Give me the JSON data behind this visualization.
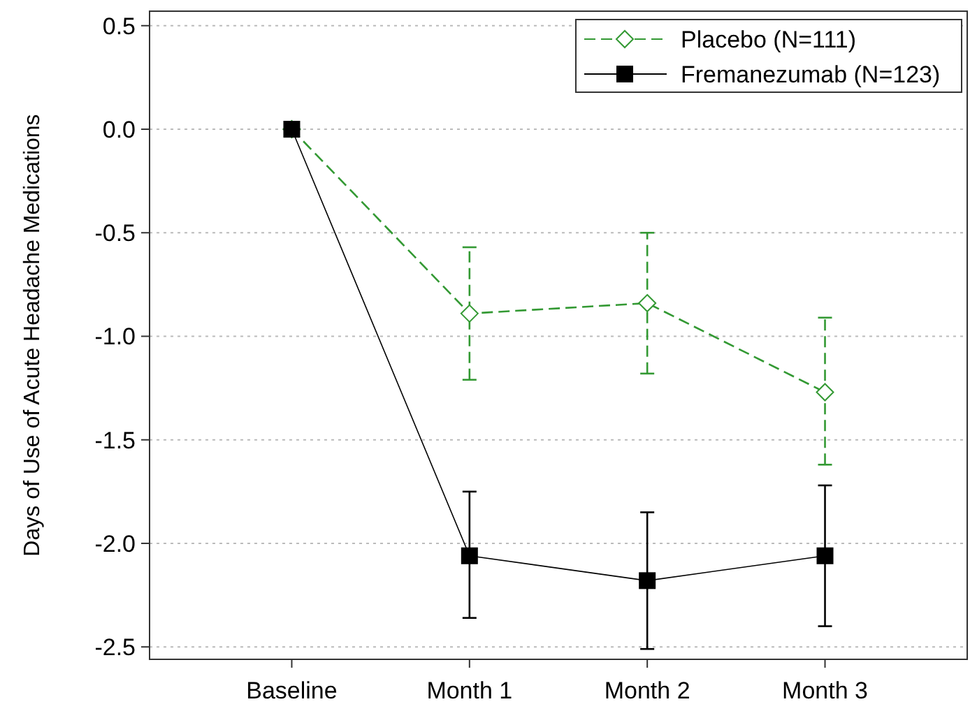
{
  "chart_data": {
    "type": "line",
    "ylabel": "Days of Use of Acute Headache Medications",
    "categories": [
      "Baseline",
      "Month 1",
      "Month 2",
      "Month 3"
    ],
    "series": [
      {
        "name": "Placebo (N=111)",
        "color": "#339933",
        "marker": "diamond",
        "line_style": "dashed",
        "values": [
          0,
          -0.89,
          -0.84,
          -1.27
        ],
        "errors": [
          null,
          [
            -1.21,
            -0.57
          ],
          [
            -1.18,
            -0.5
          ],
          [
            -1.62,
            -0.91
          ]
        ]
      },
      {
        "name": "Fremanezumab (N=123)",
        "color": "#000000",
        "marker": "square",
        "line_style": "solid",
        "values": [
          0,
          -2.06,
          -2.18,
          -2.06
        ],
        "errors": [
          null,
          [
            -2.36,
            -1.75
          ],
          [
            -2.51,
            -1.85
          ],
          [
            -2.4,
            -1.72
          ]
        ]
      }
    ],
    "ylim": [
      -2.56,
      0.57
    ],
    "yticks": [
      {
        "value": 0.5,
        "label": "0.5"
      },
      {
        "value": 0,
        "label": "0.0"
      },
      {
        "value": -0.5,
        "label": "-0.5"
      },
      {
        "value": -1,
        "label": "-1.0"
      },
      {
        "value": -1.5,
        "label": "-1.5"
      },
      {
        "value": -2,
        "label": "-2.0"
      },
      {
        "value": -2.5,
        "label": "-2.5"
      }
    ],
    "grid": "y",
    "legend": "top right"
  }
}
